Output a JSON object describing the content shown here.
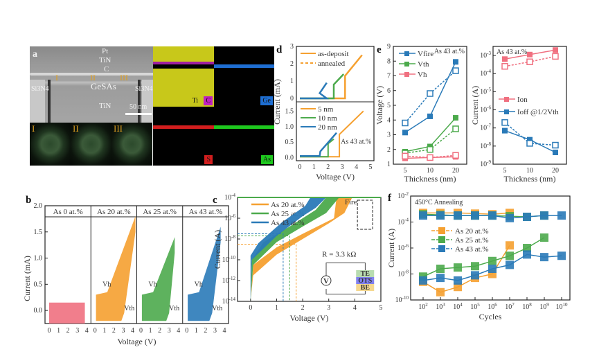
{
  "figure": {
    "panel_labels": [
      "a",
      "b",
      "c",
      "d",
      "e",
      "f"
    ]
  },
  "panel_a": {
    "label": "a",
    "layers": [
      "Pt",
      "TiN",
      "C",
      "GeSAs",
      "TiN"
    ],
    "side_labels": [
      "Si3N4",
      "Si3N4"
    ],
    "regions": [
      "I",
      "II",
      "III"
    ],
    "scale_bar": "50 nm",
    "eds_elements": [
      {
        "name": "Ti",
        "color": "#e6e614"
      },
      {
        "name": "C",
        "color": "#c020c0"
      },
      {
        "name": "Ge",
        "color": "#1e6ed2"
      },
      {
        "name": "S",
        "color": "#d21e1e"
      },
      {
        "name": "As",
        "color": "#1ec81e"
      }
    ]
  },
  "chart_data": [
    {
      "id": "b",
      "type": "line",
      "title": "",
      "xlabel": "Voltage (V)",
      "ylabel": "Current (mA)",
      "ylim": [
        -0.25,
        2.0
      ],
      "yticks": [
        "0.0",
        "0.5",
        "1.0",
        "1.5",
        "2.0"
      ],
      "subpanels": [
        {
          "name": "As 0 at.%",
          "color": "#f07080",
          "xticks": [
            "0",
            "1",
            "2",
            "3",
            "4"
          ]
        },
        {
          "name": "As 20 at.%",
          "color": "#f5a030",
          "xticks": [
            "0",
            "1",
            "2",
            "3",
            "4"
          ],
          "annotations": [
            "Vh",
            "Vth"
          ]
        },
        {
          "name": "As 25 at.%",
          "color": "#4caa4c",
          "xticks": [
            "0",
            "1",
            "2",
            "3",
            "4"
          ],
          "annotations": [
            "Vh",
            "Vth"
          ]
        },
        {
          "name": "As 43 at.%",
          "color": "#2a7ab8",
          "xticks": [
            "0",
            "1",
            "2",
            "3",
            "4"
          ],
          "annotations": [
            "Vh",
            "Vth"
          ]
        }
      ]
    },
    {
      "id": "c",
      "type": "line",
      "xlabel": "Voltage (V)",
      "ylabel": "Current (A)",
      "xlim": [
        -0.5,
        5
      ],
      "ylim": [
        -14,
        -4
      ],
      "xticks": [
        "0",
        "1",
        "2",
        "3",
        "4",
        "5"
      ],
      "yticks": [
        "10-14",
        "10-12",
        "10-10",
        "10-8",
        "10-6",
        "10-4"
      ],
      "series": [
        {
          "name": "As 20 at.%",
          "color": "#f5a030",
          "vth": 1.75,
          "fire_v": [
            3.3,
            3.9
          ]
        },
        {
          "name": "As 25 at.%",
          "color": "#4caa4c",
          "vth": 1.5,
          "fire_v": [
            2.9,
            3.4
          ]
        },
        {
          "name": "As 43 at.%",
          "color": "#2a7ab8",
          "vth": 1.25,
          "fire_v": [
            2.3,
            2.9
          ]
        }
      ],
      "annotations": [
        "Fire",
        "R = 3.3 kΩ"
      ],
      "circuit_labels": [
        "V",
        "TE",
        "OTS",
        "BE"
      ]
    },
    {
      "id": "d",
      "type": "line",
      "xlabel": "Voltage (V)",
      "ylabel": "Current (mA)",
      "xticks": [
        "0",
        "1",
        "2",
        "3",
        "4",
        "5"
      ],
      "top": {
        "ylim": [
          -0.2,
          3
        ],
        "yticks": [
          "0",
          "1",
          "2",
          "3"
        ],
        "legend": [
          {
            "name": "as-deposit",
            "style": "solid"
          },
          {
            "name": "annealed",
            "style": "dashed"
          }
        ]
      },
      "bottom": {
        "ylim": [
          -0.1,
          1.8
        ],
        "yticks": [
          "0.0",
          "0.5",
          "1.0",
          "1.5"
        ],
        "legend": [
          {
            "name": "5 nm",
            "color": "#f5a030"
          },
          {
            "name": "10 nm",
            "color": "#4caa4c"
          },
          {
            "name": "20 nm",
            "color": "#2a7ab8"
          }
        ],
        "annotation": "As 43 at.%"
      }
    },
    {
      "id": "e-left",
      "type": "line",
      "xlabel": "Thickness (nm)",
      "ylabel": "Voltage (V)",
      "categories": [
        "5",
        "10",
        "20"
      ],
      "ylim": [
        1,
        9
      ],
      "yticks": [
        "1",
        "2",
        "3",
        "4",
        "5",
        "6",
        "7",
        "8",
        "9"
      ],
      "annotation": "As 43 at.%",
      "series": [
        {
          "name": "Vfire",
          "color": "#2a7ab8",
          "values": [
            3.15,
            4.25,
            7.95
          ],
          "annealed": [
            3.8,
            5.8,
            7.35
          ]
        },
        {
          "name": "Vth",
          "color": "#4caa4c",
          "values": [
            1.85,
            2.2,
            4.15
          ],
          "annealed": [
            1.75,
            2.0,
            3.4
          ]
        },
        {
          "name": "Vh",
          "color": "#f07080",
          "values": [
            1.4,
            1.45,
            1.5
          ],
          "annealed": [
            1.55,
            1.45,
            1.6
          ]
        }
      ]
    },
    {
      "id": "e-right",
      "type": "line",
      "xlabel": "Thickness (nm)",
      "ylabel": "Current (A)",
      "categories": [
        "5",
        "10",
        "20"
      ],
      "ylim": [
        -9,
        -2.5
      ],
      "yticks": [
        "10-9",
        "10-8",
        "10-7",
        "10-6",
        "10-5",
        "10-4",
        "10-3"
      ],
      "annotation": "As 43 at.%",
      "series": [
        {
          "name": "Ion",
          "color": "#f07080",
          "values": [
            -3.2,
            -2.95,
            -2.7
          ],
          "annealed": [
            -3.6,
            -3.35,
            -3.05
          ]
        },
        {
          "name": "Ioff @1/2Vth",
          "color": "#2a7ab8",
          "values": [
            -7.15,
            -7.65,
            -8.35
          ],
          "annealed": [
            -6.7,
            -7.85,
            -7.95
          ]
        }
      ]
    },
    {
      "id": "f",
      "type": "line",
      "xlabel": "Cycles",
      "ylabel": "Current (A)",
      "xticks": [
        "10^2",
        "10^3",
        "10^4",
        "10^5",
        "10^6",
        "10^7",
        "10^8",
        "10^9",
        "10^10"
      ],
      "yticks": [
        "10-10",
        "10-8",
        "10-6",
        "10-4",
        "10-2"
      ],
      "ylim": [
        -10,
        -2
      ],
      "annotation": "450°C Annealing",
      "series": [
        {
          "name": "As 20 at.%",
          "color": "#f5a030",
          "on": [
            -3.3,
            -3.3,
            -3.3,
            -3.35,
            -3.4,
            -3.3
          ],
          "off": [
            -8.6,
            -9.4,
            -9.0,
            -8.3,
            -8.0,
            -5.8
          ],
          "x": [
            2,
            3,
            4,
            5,
            6,
            7
          ]
        },
        {
          "name": "As 25 at.%",
          "color": "#4caa4c",
          "on": [
            -3.4,
            -3.45,
            -3.5,
            -3.5,
            -3.5,
            -3.55,
            -3.6,
            -3.5
          ],
          "off": [
            -8.2,
            -7.6,
            -7.5,
            -7.4,
            -7.0,
            -6.6,
            -6.0,
            -5.2
          ],
          "x": [
            2,
            3,
            4,
            5,
            6,
            7,
            8,
            9
          ]
        },
        {
          "name": "As 43 at.%",
          "color": "#2a7ab8",
          "on": [
            -3.5,
            -3.5,
            -3.5,
            -3.5,
            -3.5,
            -3.7,
            -3.6,
            -3.5,
            -3.5
          ],
          "off": [
            -8.5,
            -8.3,
            -8.5,
            -8.1,
            -7.6,
            -7.3,
            -6.5,
            -6.7,
            -6.6
          ],
          "x": [
            2,
            3,
            4,
            5,
            6,
            7,
            8,
            9,
            10
          ]
        }
      ]
    }
  ]
}
